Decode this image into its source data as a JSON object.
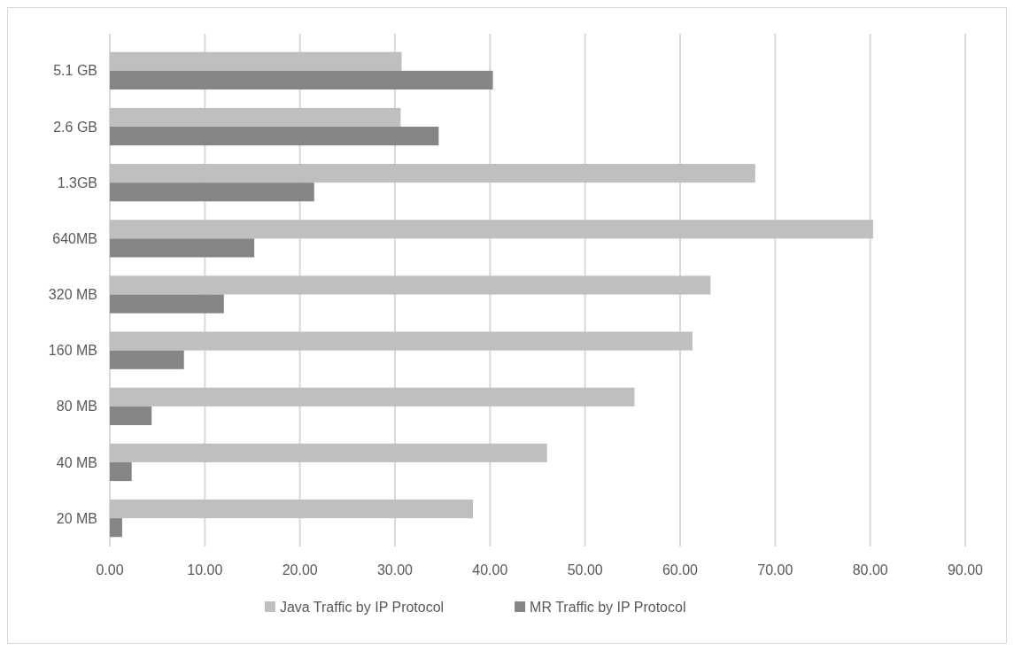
{
  "chart_data": {
    "type": "bar",
    "orientation": "horizontal",
    "categories": [
      "5.1 GB",
      "2.6 GB",
      "1.3GB",
      "640MB",
      "320 MB",
      "160 MB",
      "80 MB",
      "40 MB",
      "20 MB"
    ],
    "series": [
      {
        "name": "Java Traffic by IP Protocol",
        "color": "#bfbfbf",
        "values": [
          30.7,
          30.6,
          67.9,
          80.3,
          63.2,
          61.3,
          55.2,
          46.0,
          38.2
        ]
      },
      {
        "name": "MR Traffic by IP Protocol",
        "color": "#858585",
        "values": [
          40.3,
          34.6,
          21.5,
          15.2,
          12.0,
          7.8,
          4.4,
          2.3,
          1.3
        ]
      }
    ],
    "xlim": [
      0,
      90
    ],
    "xticks": [
      {
        "value": 0,
        "label": "0.00"
      },
      {
        "value": 10,
        "label": "10.00"
      },
      {
        "value": 20,
        "label": "20.00"
      },
      {
        "value": 30,
        "label": "30.00"
      },
      {
        "value": 40,
        "label": "40.00"
      },
      {
        "value": 50,
        "label": "50.00"
      },
      {
        "value": 60,
        "label": "60.00"
      },
      {
        "value": 70,
        "label": "70.00"
      },
      {
        "value": 80,
        "label": "80.00"
      },
      {
        "value": 90,
        "label": "90.00"
      }
    ],
    "grid": "x",
    "legend": "bottom"
  }
}
